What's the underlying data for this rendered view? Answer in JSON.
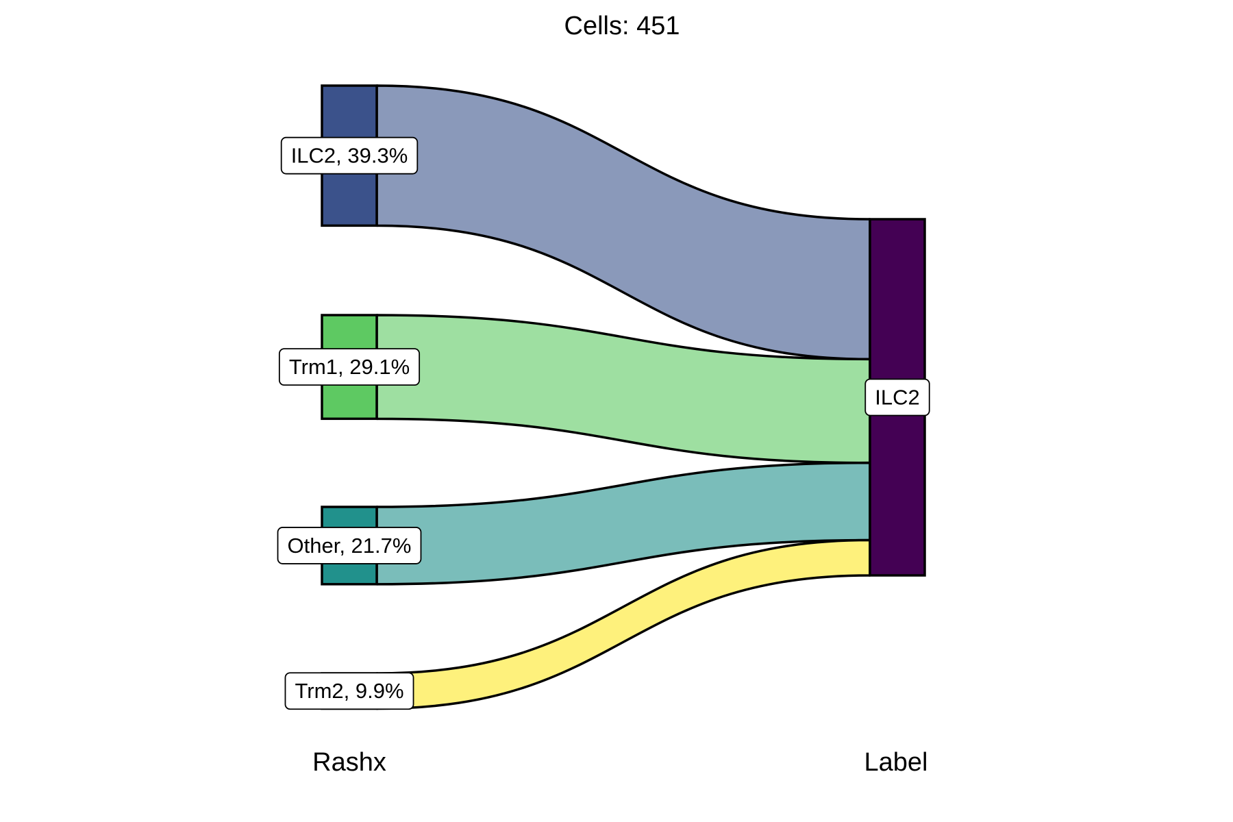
{
  "chart_data": {
    "type": "sankey",
    "title": "Cells:  451",
    "axes": [
      "Rashx",
      "Label"
    ],
    "total": 451,
    "left_nodes": [
      {
        "name": "ILC2",
        "label": "ILC2, 39.3%",
        "percent": 39.3,
        "color": "#3b528b",
        "flow_color": "#8a99ba"
      },
      {
        "name": "Trm1",
        "label": "Trm1, 29.1%",
        "percent": 29.1,
        "color": "#5ec962",
        "flow_color": "#9edfa1"
      },
      {
        "name": "Other",
        "label": "Other, 21.7%",
        "percent": 21.7,
        "color": "#21918c",
        "flow_color": "#7abdba"
      },
      {
        "name": "Trm2",
        "label": "Trm2, 9.9%",
        "percent": 9.9,
        "color": "#fde725",
        "flow_color": "#fef17c"
      }
    ],
    "right_nodes": [
      {
        "name": "ILC2",
        "label": "ILC2",
        "percent": 100,
        "color": "#440154"
      }
    ],
    "flows": [
      {
        "source": "ILC2",
        "target": "ILC2",
        "percent": 39.3
      },
      {
        "source": "Trm1",
        "target": "ILC2",
        "percent": 29.1
      },
      {
        "source": "Other",
        "target": "ILC2",
        "percent": 21.7
      },
      {
        "source": "Trm2",
        "target": "ILC2",
        "percent": 9.9
      }
    ],
    "right_stack_order": [
      "ILC2",
      "Trm1",
      "Other",
      "Trm2"
    ]
  }
}
